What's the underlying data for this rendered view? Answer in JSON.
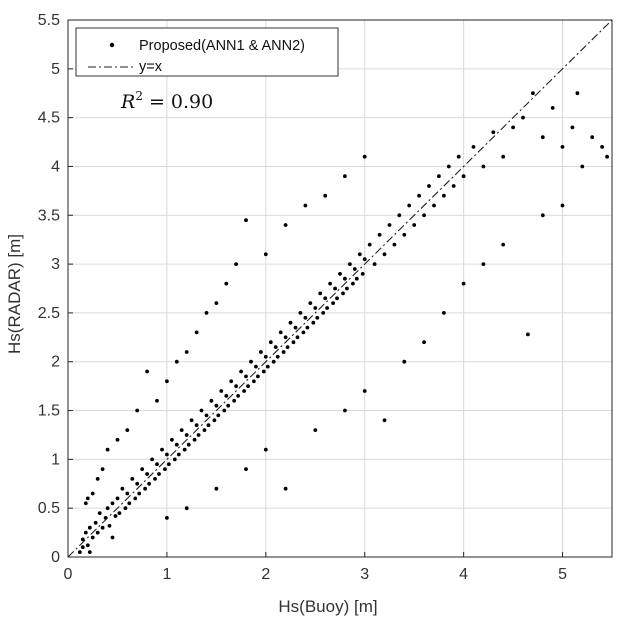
{
  "chart_data": {
    "type": "scatter",
    "title": "",
    "xlabel": "Hs(Buoy) [m]",
    "ylabel": "Hs(RADAR) [m]",
    "xlim": [
      0,
      5.5
    ],
    "ylim": [
      0,
      5.5
    ],
    "xticks": [
      "0",
      "1",
      "2",
      "3",
      "4",
      "5"
    ],
    "yticks": [
      "0",
      "0.5",
      "1",
      "1.5",
      "2",
      "2.5",
      "3",
      "3.5",
      "4",
      "4.5",
      "5",
      "5.5"
    ],
    "grid": true,
    "legend": {
      "position": "top-left",
      "entries": [
        "Proposed(ANN1 & ANN2)",
        "y=x"
      ]
    },
    "annotation": {
      "label": "R",
      "exponent": "2",
      "value": "= 0.90"
    },
    "series": [
      {
        "name": "Proposed(ANN1 & ANN2)",
        "marker": "dot",
        "color": "#000000",
        "points": [
          [
            0.15,
            0.18
          ],
          [
            0.18,
            0.25
          ],
          [
            0.2,
            0.12
          ],
          [
            0.22,
            0.3
          ],
          [
            0.25,
            0.2
          ],
          [
            0.28,
            0.35
          ],
          [
            0.3,
            0.25
          ],
          [
            0.32,
            0.45
          ],
          [
            0.35,
            0.3
          ],
          [
            0.38,
            0.4
          ],
          [
            0.4,
            0.5
          ],
          [
            0.42,
            0.32
          ],
          [
            0.45,
            0.55
          ],
          [
            0.48,
            0.42
          ],
          [
            0.5,
            0.6
          ],
          [
            0.52,
            0.45
          ],
          [
            0.55,
            0.7
          ],
          [
            0.58,
            0.5
          ],
          [
            0.6,
            0.65
          ],
          [
            0.62,
            0.55
          ],
          [
            0.65,
            0.8
          ],
          [
            0.68,
            0.6
          ],
          [
            0.7,
            0.75
          ],
          [
            0.72,
            0.65
          ],
          [
            0.75,
            0.9
          ],
          [
            0.78,
            0.7
          ],
          [
            0.8,
            0.85
          ],
          [
            0.82,
            0.75
          ],
          [
            0.85,
            1.0
          ],
          [
            0.88,
            0.8
          ],
          [
            0.9,
            0.95
          ],
          [
            0.92,
            0.85
          ],
          [
            0.95,
            1.1
          ],
          [
            0.98,
            0.9
          ],
          [
            1.0,
            1.05
          ],
          [
            1.02,
            0.95
          ],
          [
            1.05,
            1.2
          ],
          [
            1.08,
            1.0
          ],
          [
            1.1,
            1.15
          ],
          [
            1.12,
            1.05
          ],
          [
            1.15,
            1.3
          ],
          [
            1.18,
            1.1
          ],
          [
            1.2,
            1.25
          ],
          [
            1.22,
            1.15
          ],
          [
            1.25,
            1.4
          ],
          [
            1.28,
            1.2
          ],
          [
            1.3,
            1.35
          ],
          [
            1.32,
            1.25
          ],
          [
            1.35,
            1.5
          ],
          [
            1.38,
            1.3
          ],
          [
            1.4,
            1.45
          ],
          [
            1.42,
            1.35
          ],
          [
            1.45,
            1.6
          ],
          [
            1.48,
            1.4
          ],
          [
            1.5,
            1.55
          ],
          [
            1.52,
            1.45
          ],
          [
            1.55,
            1.7
          ],
          [
            1.58,
            1.5
          ],
          [
            1.6,
            1.65
          ],
          [
            1.62,
            1.55
          ],
          [
            1.65,
            1.8
          ],
          [
            1.68,
            1.6
          ],
          [
            1.7,
            1.75
          ],
          [
            1.72,
            1.65
          ],
          [
            1.75,
            1.9
          ],
          [
            1.78,
            1.7
          ],
          [
            1.8,
            1.85
          ],
          [
            1.82,
            1.75
          ],
          [
            1.85,
            2.0
          ],
          [
            1.88,
            1.8
          ],
          [
            1.9,
            1.95
          ],
          [
            1.92,
            1.85
          ],
          [
            1.95,
            2.1
          ],
          [
            1.98,
            1.9
          ],
          [
            2.0,
            2.05
          ],
          [
            2.02,
            1.95
          ],
          [
            2.05,
            2.2
          ],
          [
            2.08,
            2.0
          ],
          [
            2.1,
            2.15
          ],
          [
            2.12,
            2.05
          ],
          [
            2.15,
            2.3
          ],
          [
            2.18,
            2.1
          ],
          [
            2.2,
            2.25
          ],
          [
            2.22,
            2.15
          ],
          [
            2.25,
            2.4
          ],
          [
            2.28,
            2.2
          ],
          [
            2.3,
            2.35
          ],
          [
            2.32,
            2.25
          ],
          [
            2.35,
            2.5
          ],
          [
            2.38,
            2.3
          ],
          [
            2.4,
            2.45
          ],
          [
            2.42,
            2.35
          ],
          [
            2.45,
            2.6
          ],
          [
            2.48,
            2.4
          ],
          [
            2.5,
            2.55
          ],
          [
            2.52,
            2.45
          ],
          [
            2.55,
            2.7
          ],
          [
            2.58,
            2.5
          ],
          [
            2.6,
            2.65
          ],
          [
            2.62,
            2.55
          ],
          [
            2.65,
            2.8
          ],
          [
            2.68,
            2.6
          ],
          [
            2.7,
            2.75
          ],
          [
            2.72,
            2.65
          ],
          [
            2.75,
            2.9
          ],
          [
            2.78,
            2.7
          ],
          [
            2.8,
            2.85
          ],
          [
            2.82,
            2.75
          ],
          [
            2.85,
            3.0
          ],
          [
            2.88,
            2.8
          ],
          [
            2.9,
            2.95
          ],
          [
            2.92,
            2.85
          ],
          [
            2.95,
            3.1
          ],
          [
            2.98,
            2.9
          ],
          [
            3.0,
            3.05
          ],
          [
            3.05,
            3.2
          ],
          [
            3.1,
            3.0
          ],
          [
            3.15,
            3.3
          ],
          [
            3.2,
            3.1
          ],
          [
            3.25,
            3.4
          ],
          [
            3.3,
            3.2
          ],
          [
            3.35,
            3.5
          ],
          [
            3.4,
            3.3
          ],
          [
            3.45,
            3.6
          ],
          [
            3.5,
            3.4
          ],
          [
            3.55,
            3.7
          ],
          [
            3.6,
            3.5
          ],
          [
            3.65,
            3.8
          ],
          [
            3.7,
            3.6
          ],
          [
            3.75,
            3.9
          ],
          [
            3.8,
            3.7
          ],
          [
            3.85,
            4.0
          ],
          [
            3.9,
            3.8
          ],
          [
            3.95,
            4.1
          ],
          [
            4.0,
            3.9
          ],
          [
            4.1,
            4.2
          ],
          [
            4.2,
            4.0
          ],
          [
            4.3,
            4.35
          ],
          [
            4.4,
            4.1
          ],
          [
            4.5,
            4.4
          ],
          [
            0.5,
            1.2
          ],
          [
            0.6,
            1.3
          ],
          [
            0.7,
            1.5
          ],
          [
            0.8,
            1.9
          ],
          [
            0.9,
            1.6
          ],
          [
            1.0,
            1.8
          ],
          [
            1.1,
            2.0
          ],
          [
            1.2,
            2.1
          ],
          [
            1.3,
            2.3
          ],
          [
            1.4,
            2.5
          ],
          [
            1.5,
            2.6
          ],
          [
            1.6,
            2.8
          ],
          [
            1.7,
            3.0
          ],
          [
            1.8,
            3.45
          ],
          [
            2.0,
            3.1
          ],
          [
            2.2,
            3.4
          ],
          [
            2.4,
            3.6
          ],
          [
            2.6,
            3.7
          ],
          [
            2.8,
            3.9
          ],
          [
            3.0,
            4.1
          ],
          [
            1.0,
            0.4
          ],
          [
            1.2,
            0.5
          ],
          [
            1.5,
            0.7
          ],
          [
            1.8,
            0.9
          ],
          [
            2.0,
            1.1
          ],
          [
            2.2,
            0.7
          ],
          [
            2.5,
            1.3
          ],
          [
            2.8,
            1.5
          ],
          [
            3.0,
            1.7
          ],
          [
            3.2,
            1.4
          ],
          [
            3.4,
            2.0
          ],
          [
            3.6,
            2.2
          ],
          [
            3.8,
            2.5
          ],
          [
            4.0,
            2.8
          ],
          [
            4.2,
            3.0
          ],
          [
            4.4,
            3.2
          ],
          [
            4.65,
            2.28
          ],
          [
            4.8,
            3.5
          ],
          [
            5.0,
            3.6
          ],
          [
            5.2,
            4.0
          ],
          [
            4.6,
            4.5
          ],
          [
            4.7,
            4.75
          ],
          [
            4.8,
            4.3
          ],
          [
            4.9,
            4.6
          ],
          [
            5.0,
            4.2
          ],
          [
            5.1,
            4.4
          ],
          [
            5.15,
            4.75
          ],
          [
            5.3,
            4.3
          ],
          [
            5.4,
            4.2
          ],
          [
            5.45,
            4.1
          ],
          [
            0.12,
            0.05
          ],
          [
            0.15,
            0.1
          ],
          [
            0.18,
            0.55
          ],
          [
            0.2,
            0.6
          ],
          [
            0.22,
            0.05
          ],
          [
            0.25,
            0.65
          ],
          [
            0.3,
            0.8
          ],
          [
            0.35,
            0.9
          ],
          [
            0.4,
            1.1
          ],
          [
            0.45,
            0.2
          ]
        ]
      }
    ],
    "reference_line": {
      "name": "y=x",
      "points": [
        [
          0,
          0
        ],
        [
          5.5,
          5.5
        ]
      ]
    }
  }
}
